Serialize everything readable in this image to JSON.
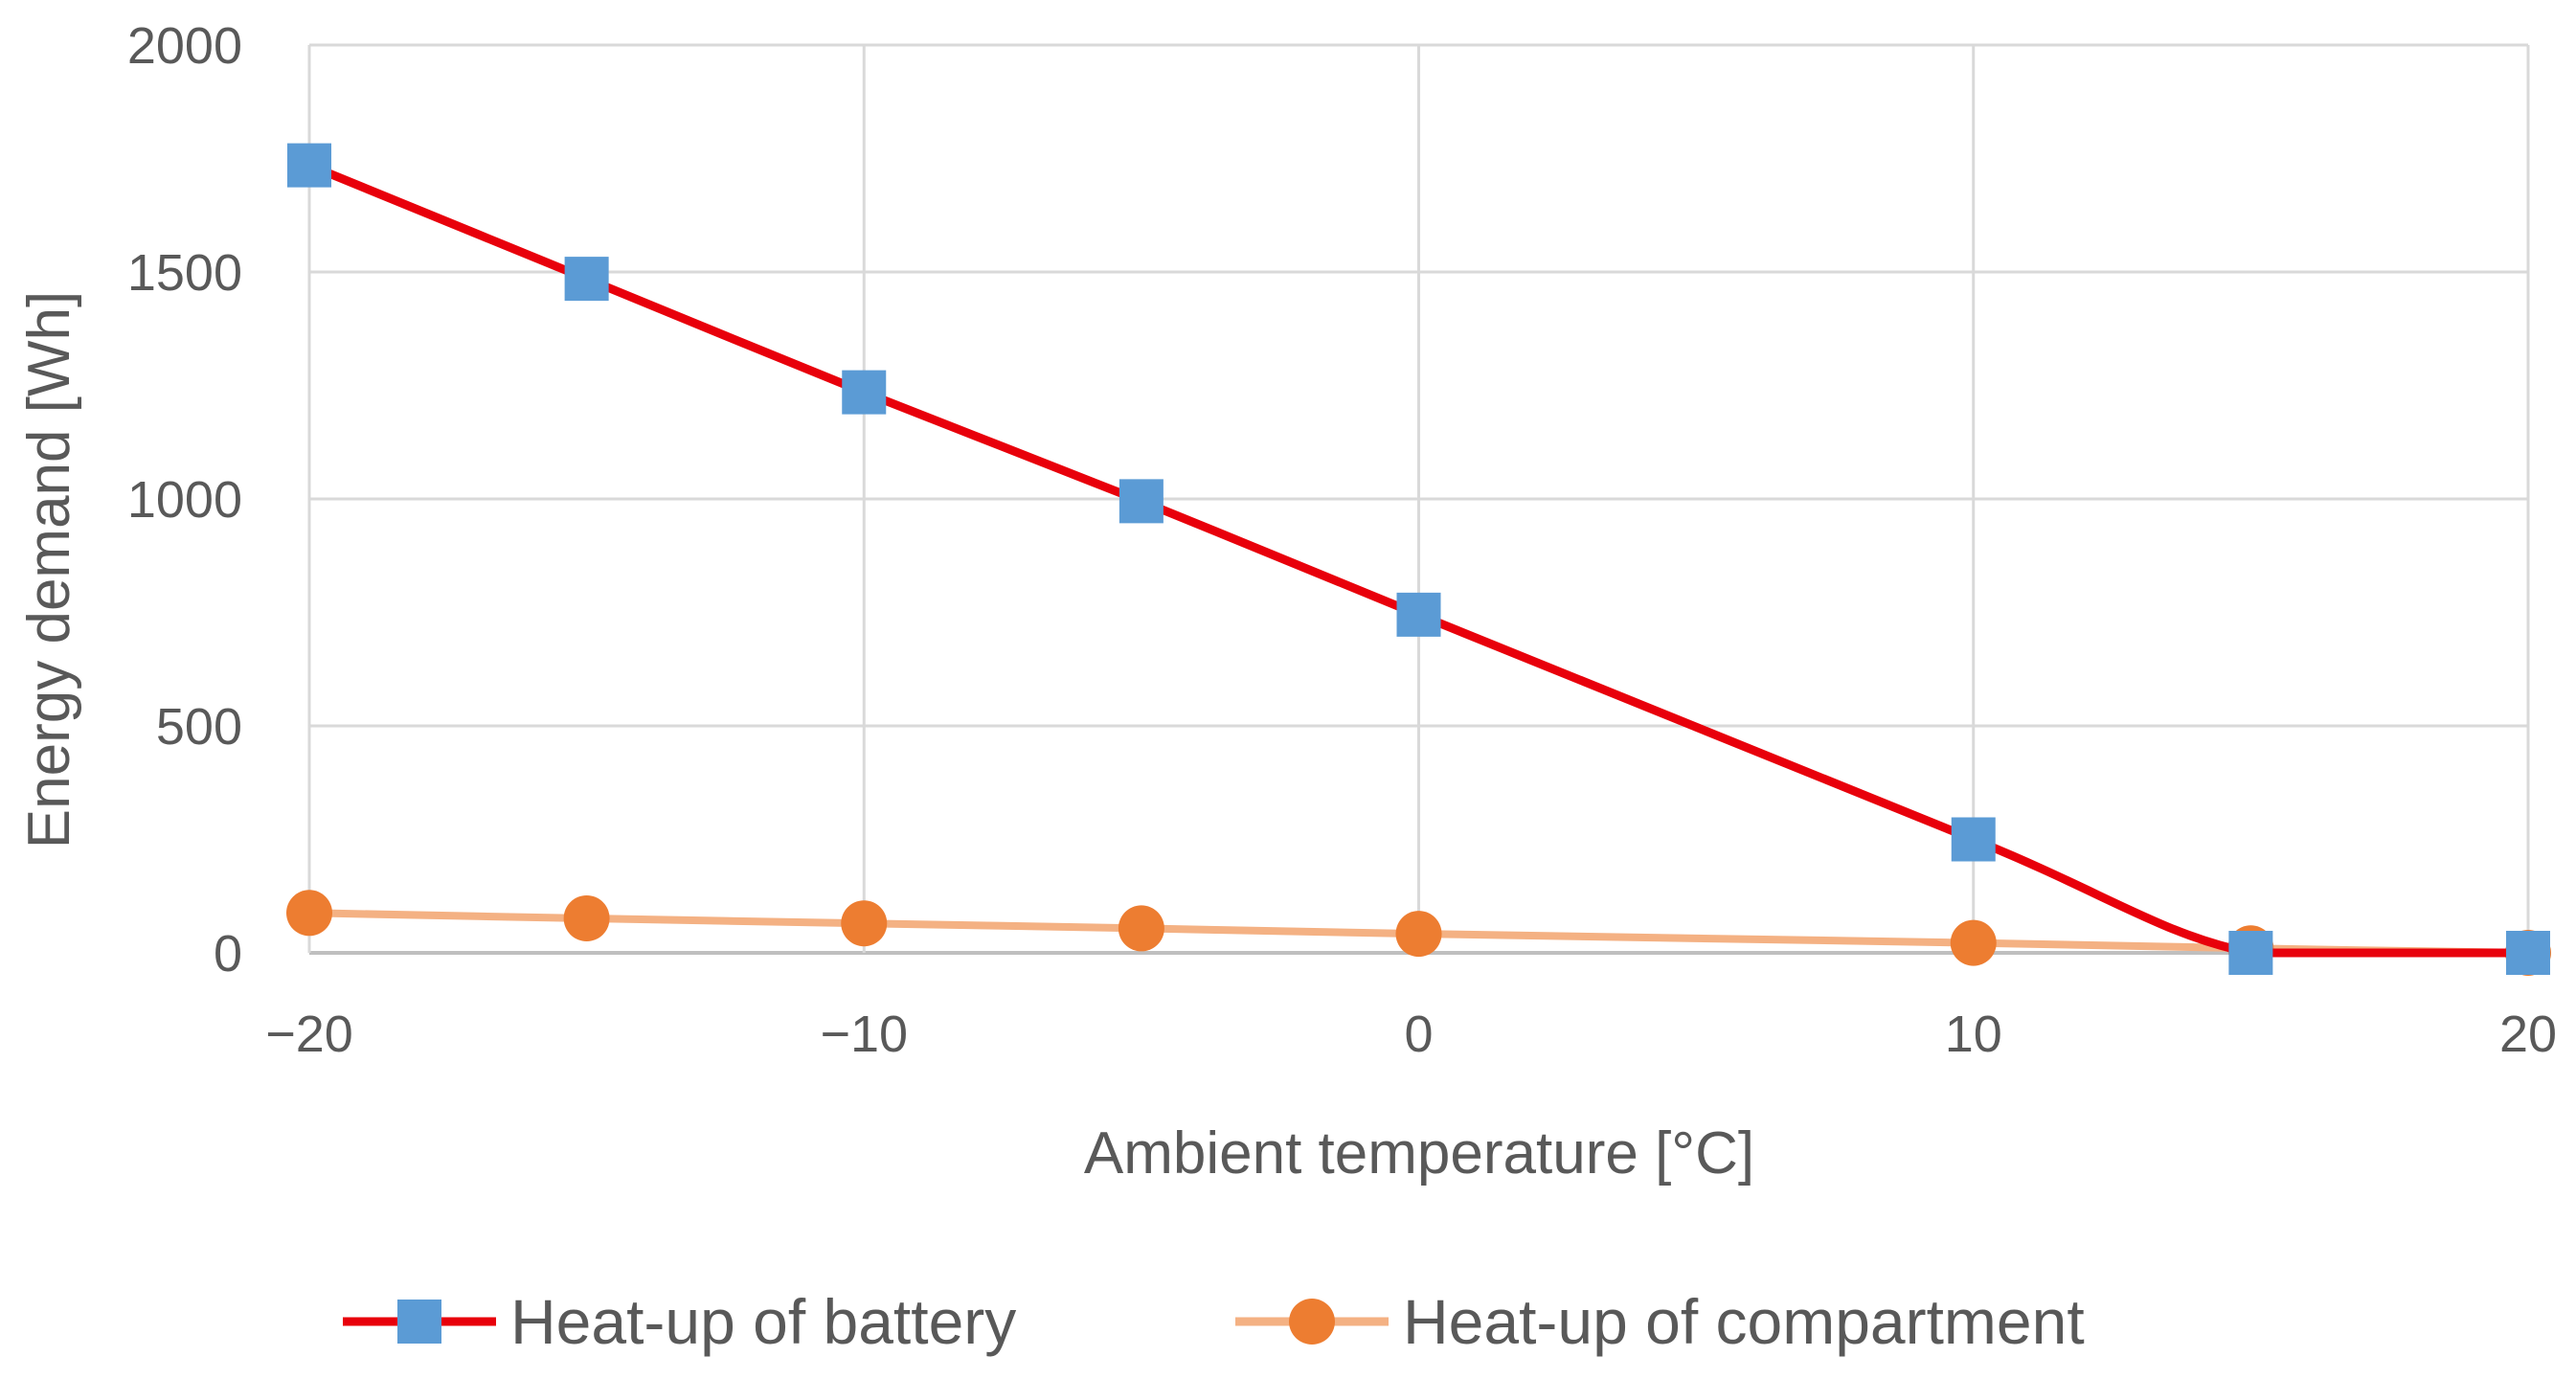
{
  "chart_data": {
    "type": "line",
    "title": "",
    "xlabel": "Ambient temperature [°C]",
    "ylabel": "Energy demand [Wh]",
    "xlim": [
      -20,
      20
    ],
    "ylim": [
      0,
      2000
    ],
    "x_ticks": [
      -20,
      -10,
      0,
      10,
      20
    ],
    "x_tick_labels": [
      "−20",
      "−10",
      "0",
      "10",
      "20"
    ],
    "y_ticks": [
      0,
      500,
      1000,
      1500,
      2000
    ],
    "y_tick_labels": [
      "0",
      "500",
      "1000",
      "1500",
      "2000"
    ],
    "grid": true,
    "legend_position": "bottom",
    "series": [
      {
        "name": "Heat-up of battery",
        "color": "#e8000b",
        "marker": "square",
        "marker_color": "#5b9bd5",
        "x": [
          -20,
          -15,
          -10,
          -5,
          0,
          10,
          15,
          20
        ],
        "values": [
          1735,
          1485,
          1235,
          995,
          745,
          250,
          0,
          0
        ]
      },
      {
        "name": "Heat-up of compartment",
        "color": "#f4b183",
        "marker": "circle",
        "marker_color": "#ed7d31",
        "x": [
          -20,
          -15,
          -10,
          -5,
          0,
          10,
          15,
          20
        ],
        "values": [
          88,
          76,
          65,
          54,
          42,
          22,
          10,
          0
        ]
      }
    ]
  }
}
